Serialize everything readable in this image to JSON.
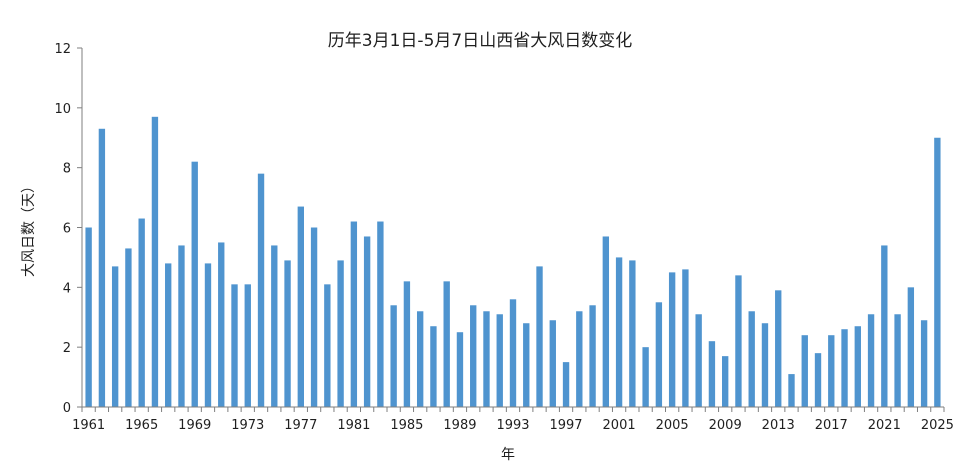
{
  "chart_data": {
    "type": "bar",
    "title": "历年3月1日-5月7日山西省大风日数变化",
    "xlabel": "年",
    "ylabel": "大风日数（天）",
    "ylim": [
      0,
      12
    ],
    "yticks": [
      "0",
      "2",
      "4",
      "6",
      "8",
      "10",
      "12"
    ],
    "xtick_labels": [
      "1961",
      "1965",
      "1969",
      "1973",
      "1977",
      "1981",
      "1985",
      "1989",
      "1993",
      "1997",
      "2001",
      "2005",
      "2009",
      "2013",
      "2017",
      "2021",
      "2025"
    ],
    "grid": false,
    "legend": "none",
    "bar_color": "#4f94cf",
    "categories": [
      1961,
      1962,
      1963,
      1964,
      1965,
      1966,
      1967,
      1968,
      1969,
      1970,
      1971,
      1972,
      1973,
      1974,
      1975,
      1976,
      1977,
      1978,
      1979,
      1980,
      1981,
      1982,
      1983,
      1984,
      1985,
      1986,
      1987,
      1988,
      1989,
      1990,
      1991,
      1992,
      1993,
      1994,
      1995,
      1996,
      1997,
      1998,
      1999,
      2000,
      2001,
      2002,
      2003,
      2004,
      2005,
      2006,
      2007,
      2008,
      2009,
      2010,
      2011,
      2012,
      2013,
      2014,
      2015,
      2016,
      2017,
      2018,
      2019,
      2020,
      2021,
      2022,
      2023,
      2024,
      2025
    ],
    "values": [
      6.0,
      9.3,
      4.7,
      5.3,
      6.3,
      9.7,
      4.8,
      5.4,
      8.2,
      4.8,
      5.5,
      4.1,
      4.1,
      7.8,
      5.4,
      4.9,
      6.7,
      6.0,
      4.1,
      4.9,
      6.2,
      5.7,
      6.2,
      3.4,
      4.2,
      3.2,
      2.7,
      4.2,
      2.5,
      3.4,
      3.2,
      3.1,
      3.6,
      2.8,
      4.7,
      2.9,
      1.5,
      3.2,
      3.4,
      5.7,
      5.0,
      4.9,
      2.0,
      3.5,
      4.5,
      4.6,
      3.1,
      2.2,
      1.7,
      4.4,
      3.2,
      2.8,
      3.9,
      1.1,
      2.4,
      1.8,
      2.4,
      2.6,
      2.7,
      3.1,
      5.4,
      3.1,
      4.0,
      2.9,
      9.0
    ]
  }
}
